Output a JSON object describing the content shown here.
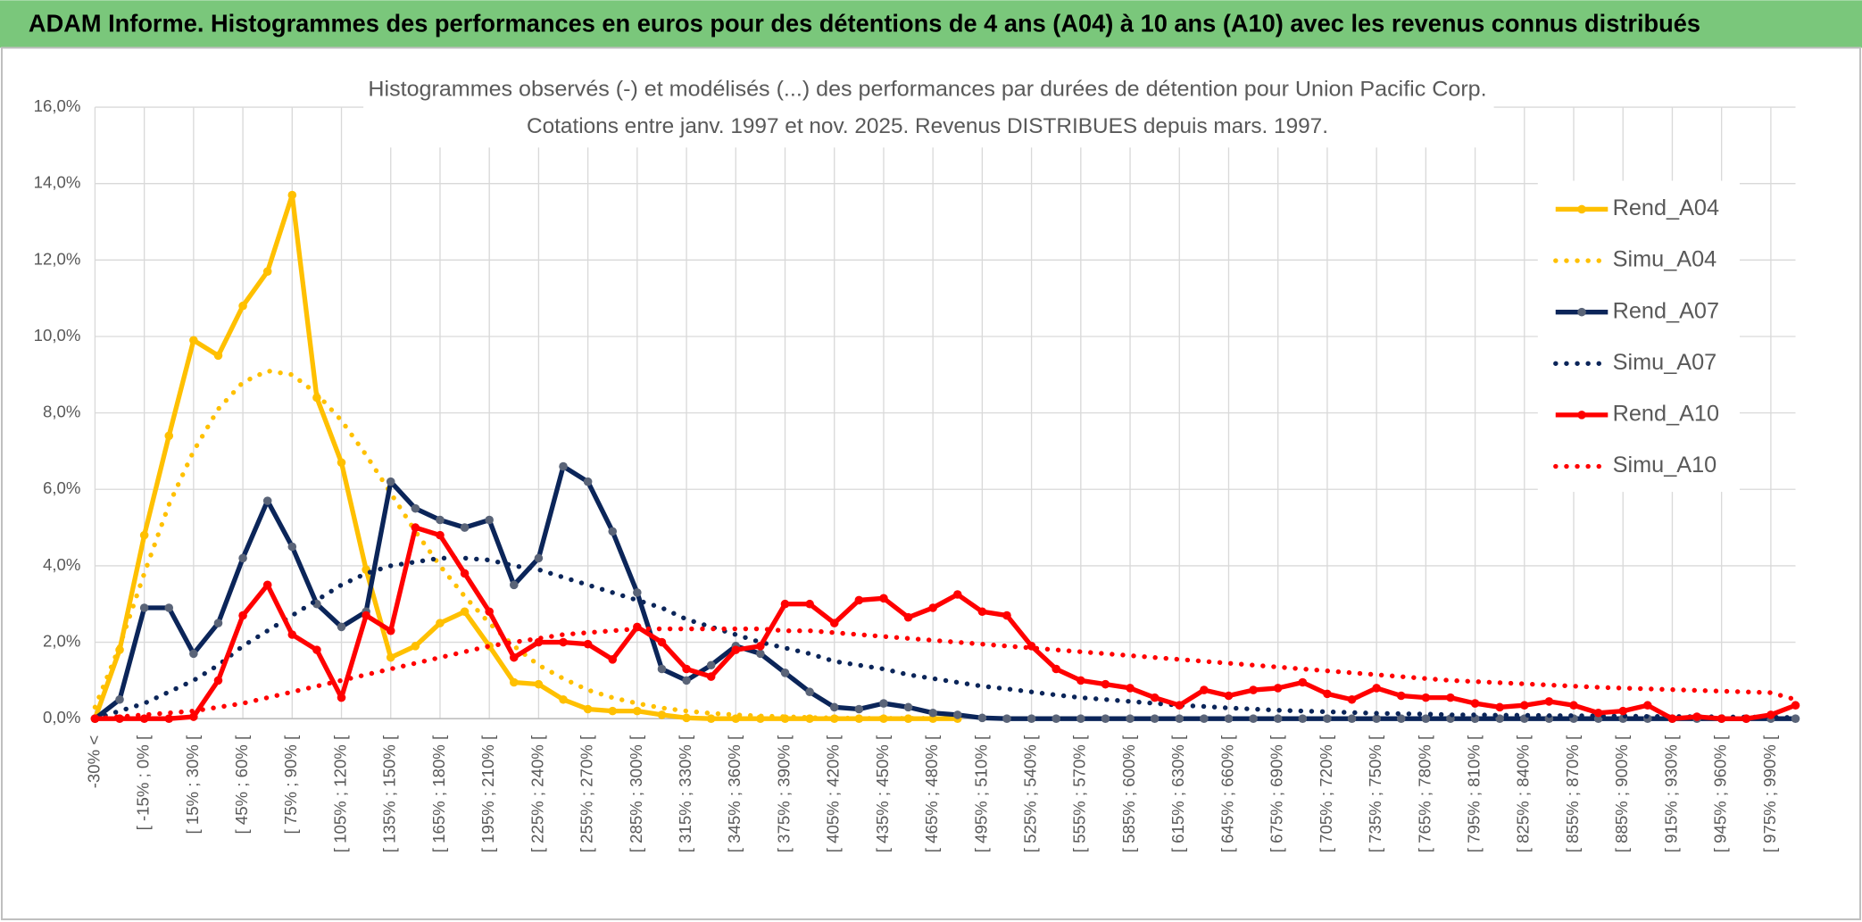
{
  "chart_data": {
    "type": "line",
    "header": "ADAM Informe. Histogrammes des performances en euros pour des détentions de 4 ans (A04) à 10 ans (A10) avec les revenus connus distribués",
    "title": "Histogrammes observés (-) et modélisés (...) des performances par durées de détention pour Union Pacific Corp.",
    "subtitle": "Cotations entre janv. 1997 et nov. 2025. Revenus DISTRIBUES depuis mars. 1997.",
    "categories": [
      "-30% <",
      null,
      "[ -15% ; 0% [",
      null,
      "[ 15% ; 30% [",
      null,
      "[ 45% ; 60% [",
      null,
      "[ 75% ; 90% [",
      null,
      "[ 105% ; 120% [",
      null,
      "[ 135% ; 150% [",
      null,
      "[ 165% ; 180% [",
      null,
      "[ 195% ; 210% [",
      null,
      "[ 225% ; 240% [",
      null,
      "[ 255% ; 270% [",
      null,
      "[ 285% ; 300% [",
      null,
      "[ 315% ; 330% [",
      null,
      "[ 345% ; 360% [",
      null,
      "[ 375% ; 390% [",
      null,
      "[ 405% ; 420% [",
      null,
      "[ 435% ; 450% [",
      null,
      "[ 465% ; 480% [",
      null,
      "[ 495% ; 510% [",
      null,
      "[ 525% ; 540% [",
      null,
      "[ 555% ; 570% [",
      null,
      "[ 585% ; 600% [",
      null,
      "[ 615% ; 630% [",
      null,
      "[ 645% ; 660% [",
      null,
      "[ 675% ; 690% [",
      null,
      "[ 705% ; 720% [",
      null,
      "[ 735% ; 750% [",
      null,
      "[ 765% ; 780% [",
      null,
      "[ 795% ; 810% [",
      null,
      "[ 825% ; 840% [",
      null,
      "[ 855% ; 870% [",
      null,
      "[ 885% ; 900% [",
      null,
      "[ 915% ; 930% [",
      null,
      "[ 945% ; 960% [",
      null,
      "[ 975% ; 990% [",
      null
    ],
    "series": [
      {
        "name": "Rend_A04",
        "color": "#ffc000",
        "style": "solid",
        "markers": true,
        "values": [
          0,
          1.8,
          4.8,
          7.4,
          9.9,
          9.5,
          10.8,
          11.7,
          13.7,
          8.4,
          6.7,
          3.9,
          1.6,
          1.9,
          2.5,
          2.8,
          1.9,
          0.95,
          0.9,
          0.5,
          0.25,
          0.2,
          0.2,
          0.1,
          0.02,
          0,
          0,
          0,
          0,
          0,
          0,
          0,
          0,
          0,
          0,
          0,
          null,
          null,
          null,
          null,
          null,
          null,
          null,
          null,
          null,
          null,
          null,
          null,
          null,
          null,
          null,
          null,
          null,
          null,
          null,
          null,
          null,
          null,
          null,
          null,
          null,
          null,
          null,
          null,
          null,
          null,
          null,
          null,
          null,
          null
        ]
      },
      {
        "name": "Simu_A04",
        "color": "#ffc000",
        "style": "dotted",
        "markers": false,
        "values": [
          0.3,
          1.9,
          3.8,
          5.6,
          7.0,
          8.1,
          8.8,
          9.1,
          9.0,
          8.5,
          7.8,
          6.9,
          5.9,
          4.9,
          4.0,
          3.2,
          2.5,
          1.9,
          1.4,
          1.05,
          0.75,
          0.55,
          0.4,
          0.28,
          0.2,
          0.14,
          0.1,
          0.07,
          0.05,
          0.03,
          0.02,
          0.01,
          0.01,
          0.01,
          0.01,
          0.01,
          null,
          null,
          null,
          null,
          null,
          null,
          null,
          null,
          null,
          null,
          null,
          null,
          null,
          null,
          null,
          null,
          null,
          null,
          null,
          null,
          null,
          null,
          null,
          null,
          null,
          null,
          null,
          null,
          null,
          null,
          null,
          null,
          null,
          null
        ]
      },
      {
        "name": "Rend_A07",
        "color": "#0b2559",
        "marker_color": "#5a6478",
        "style": "solid",
        "markers": true,
        "values": [
          0,
          0.5,
          2.9,
          2.9,
          1.7,
          2.5,
          4.2,
          5.7,
          4.5,
          3.0,
          2.4,
          2.8,
          6.2,
          5.5,
          5.2,
          5.0,
          5.2,
          3.5,
          4.2,
          6.6,
          6.2,
          4.9,
          3.3,
          1.3,
          1.0,
          1.4,
          1.9,
          1.7,
          1.2,
          0.7,
          0.3,
          0.25,
          0.4,
          0.3,
          0.15,
          0.1,
          0.02,
          0,
          0,
          0,
          0,
          0,
          0,
          0,
          0,
          0,
          0,
          0,
          0,
          0,
          0,
          0,
          0,
          0,
          0,
          0,
          0,
          0,
          0,
          0,
          0,
          0,
          0,
          0,
          0,
          0,
          0,
          0,
          0,
          0
        ]
      },
      {
        "name": "Simu_A07",
        "color": "#0b2559",
        "style": "dotted",
        "markers": false,
        "values": [
          0,
          0.2,
          0.4,
          0.7,
          1.0,
          1.4,
          1.9,
          2.3,
          2.7,
          3.1,
          3.5,
          3.8,
          4.0,
          4.1,
          4.2,
          4.2,
          4.15,
          4.0,
          3.9,
          3.7,
          3.5,
          3.3,
          3.1,
          2.9,
          2.6,
          2.4,
          2.2,
          2.0,
          1.85,
          1.7,
          1.5,
          1.4,
          1.3,
          1.15,
          1.05,
          0.95,
          0.85,
          0.78,
          0.7,
          0.62,
          0.55,
          0.5,
          0.45,
          0.4,
          0.35,
          0.32,
          0.28,
          0.25,
          0.22,
          0.2,
          0.18,
          0.16,
          0.14,
          0.13,
          0.12,
          0.1,
          0.1,
          0.09,
          0.09,
          0.08,
          0.08,
          0.07,
          0.07,
          0.06,
          0.06,
          0.05,
          0.05,
          0.04,
          0.04,
          0.03
        ]
      },
      {
        "name": "Rend_A10",
        "color": "#ff0000",
        "style": "solid",
        "markers": true,
        "values": [
          0,
          0,
          0,
          0,
          0.05,
          1.0,
          2.7,
          3.5,
          2.2,
          1.8,
          0.55,
          2.7,
          2.3,
          5.0,
          4.8,
          3.8,
          2.8,
          1.6,
          2.0,
          2.0,
          1.95,
          1.55,
          2.4,
          2.0,
          1.3,
          1.1,
          1.8,
          1.9,
          3.0,
          3.0,
          2.5,
          3.1,
          3.15,
          2.65,
          2.9,
          3.25,
          2.8,
          2.7,
          1.9,
          1.3,
          1.0,
          0.9,
          0.8,
          0.55,
          0.35,
          0.75,
          0.6,
          0.75,
          0.8,
          0.95,
          0.65,
          0.5,
          0.8,
          0.6,
          0.55,
          0.55,
          0.4,
          0.3,
          0.35,
          0.45,
          0.35,
          0.15,
          0.2,
          0.35,
          0,
          0.05,
          0,
          0,
          0.1,
          0.35
        ]
      },
      {
        "name": "Simu_A10",
        "color": "#ff0000",
        "style": "dotted",
        "markers": false,
        "values": [
          0,
          0.05,
          0.1,
          0.15,
          0.2,
          0.3,
          0.4,
          0.55,
          0.7,
          0.85,
          1.0,
          1.15,
          1.3,
          1.45,
          1.6,
          1.75,
          1.9,
          2.0,
          2.1,
          2.2,
          2.25,
          2.3,
          2.35,
          2.35,
          2.35,
          2.35,
          2.35,
          2.35,
          2.3,
          2.3,
          2.25,
          2.2,
          2.15,
          2.1,
          2.05,
          2.0,
          1.95,
          1.9,
          1.85,
          1.8,
          1.75,
          1.7,
          1.65,
          1.6,
          1.55,
          1.5,
          1.45,
          1.4,
          1.35,
          1.3,
          1.25,
          1.2,
          1.15,
          1.1,
          1.05,
          1.0,
          0.97,
          0.94,
          0.91,
          0.88,
          0.85,
          0.82,
          0.8,
          0.78,
          0.76,
          0.74,
          0.72,
          0.7,
          0.68,
          0.5
        ]
      }
    ],
    "ylim": [
      0,
      16
    ],
    "yticks": [
      {
        "value": 0,
        "label": "0,0%"
      },
      {
        "value": 2,
        "label": "2,0%"
      },
      {
        "value": 4,
        "label": "4,0%"
      },
      {
        "value": 6,
        "label": "6,0%"
      },
      {
        "value": 8,
        "label": "8,0%"
      },
      {
        "value": 10,
        "label": "10,0%"
      },
      {
        "value": 12,
        "label": "12,0%"
      },
      {
        "value": 14,
        "label": "14,0%"
      },
      {
        "value": 16,
        "label": "16,0%"
      }
    ],
    "grid": true,
    "legend": "right"
  }
}
